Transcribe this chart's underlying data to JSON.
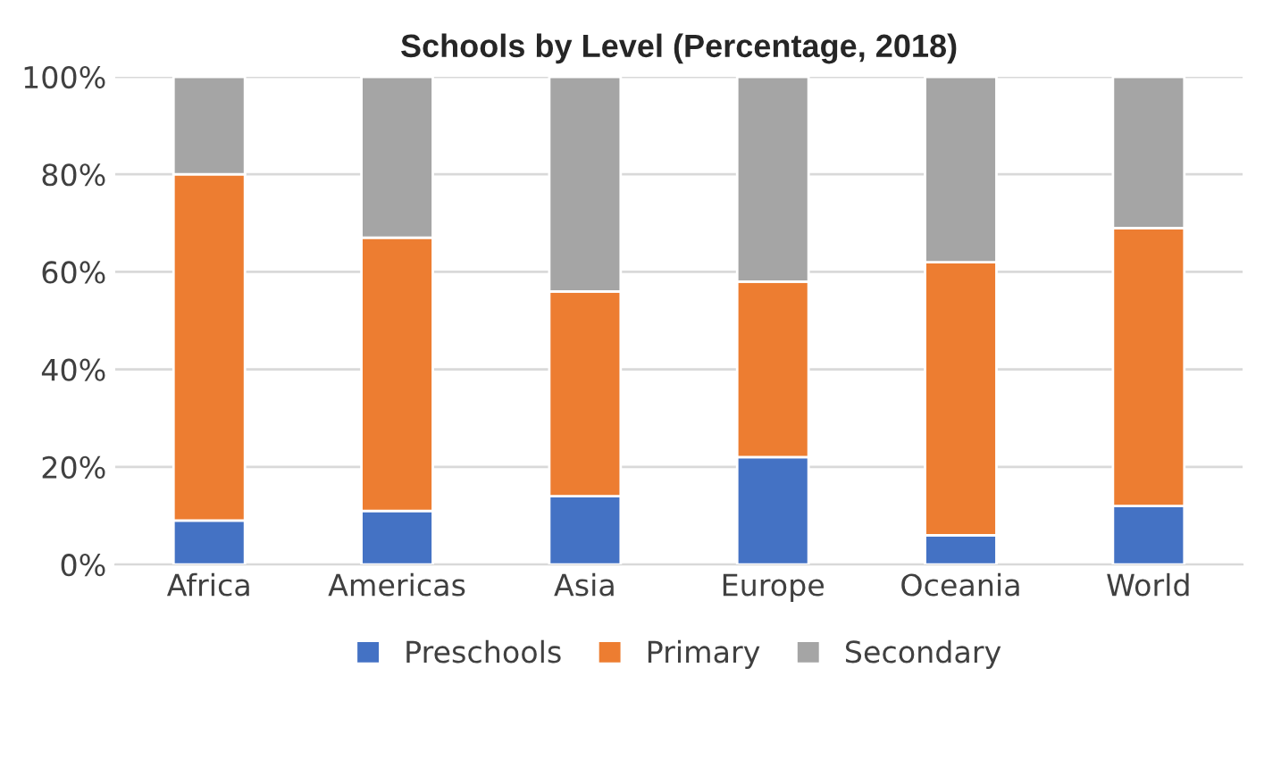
{
  "chart_data": {
    "type": "bar",
    "title": "Schools by Level (Percentage, 2018)",
    "categories": [
      "Africa",
      "Americas",
      "Asia",
      "Europe",
      "Oceania",
      "World"
    ],
    "stacked": true,
    "series": [
      {
        "name": "Preschools",
        "color": "#4472c4",
        "values": [
          9,
          11,
          14,
          22,
          6,
          12
        ]
      },
      {
        "name": "Primary",
        "color": "#ed7d31",
        "values": [
          71,
          56,
          42,
          36,
          56,
          57
        ]
      },
      {
        "name": "Secondary",
        "color": "#a5a5a5",
        "values": [
          20,
          33,
          44,
          42,
          38,
          31
        ]
      }
    ],
    "ylim": [
      0,
      100
    ],
    "yticks": [
      {
        "value": 0,
        "label": "0%"
      },
      {
        "value": 20,
        "label": "20%"
      },
      {
        "value": 40,
        "label": "40%"
      },
      {
        "value": 60,
        "label": "60%"
      },
      {
        "value": 80,
        "label": "80%"
      },
      {
        "value": 100,
        "label": "100%"
      }
    ],
    "grid": "y",
    "legend": "bottom"
  }
}
